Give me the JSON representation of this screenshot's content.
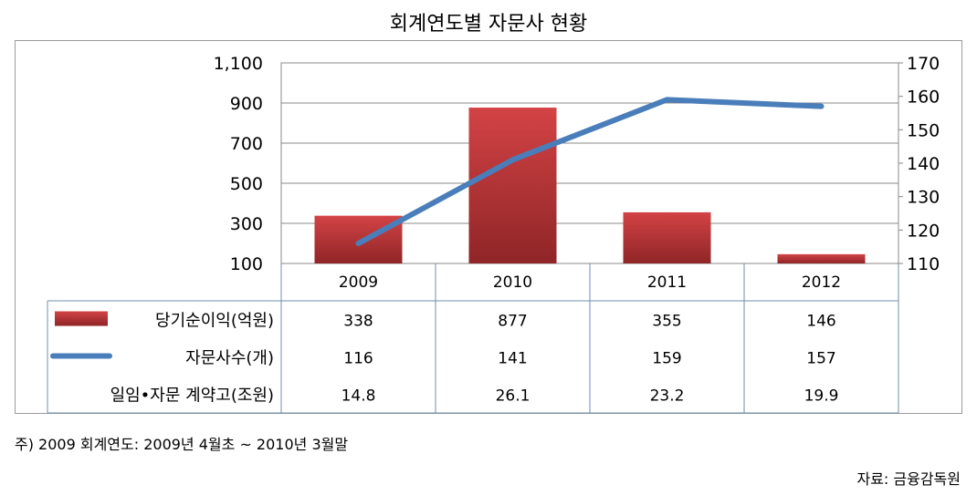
{
  "title": "회계연도별 자문사 현황",
  "chart_data": {
    "type": "bar",
    "categories": [
      "2009",
      "2010",
      "2011",
      "2012"
    ],
    "left_axis": {
      "min": 100,
      "max": 1100,
      "ticks": [
        "1,100",
        "900",
        "700",
        "500",
        "300",
        "100"
      ]
    },
    "right_axis": {
      "min": 110,
      "max": 170,
      "ticks": [
        "170",
        "160",
        "150",
        "140",
        "130",
        "120",
        "110"
      ]
    },
    "series": [
      {
        "name": "당기순이익(억원)",
        "type": "bar",
        "axis": "left",
        "values": [
          338,
          877,
          355,
          146
        ],
        "labels": [
          "338",
          "877",
          "355",
          "146"
        ],
        "color": "#c0393b"
      },
      {
        "name": "자문사수(개)",
        "type": "line",
        "axis": "right",
        "values": [
          116,
          141,
          159,
          157
        ],
        "labels": [
          "116",
          "141",
          "159",
          "157"
        ],
        "color": "#4a7ebb"
      },
      {
        "name": "일임•자문 계약고(조원)",
        "type": "table-only",
        "labels": [
          "14.8",
          "26.1",
          "23.2",
          "19.9"
        ]
      }
    ],
    "grid": true,
    "legend": "data-table"
  },
  "note": "주) 2009  회계연도: 2009년  4월초  ~ 2010년  3월말",
  "source": "자료:  금융감독원"
}
